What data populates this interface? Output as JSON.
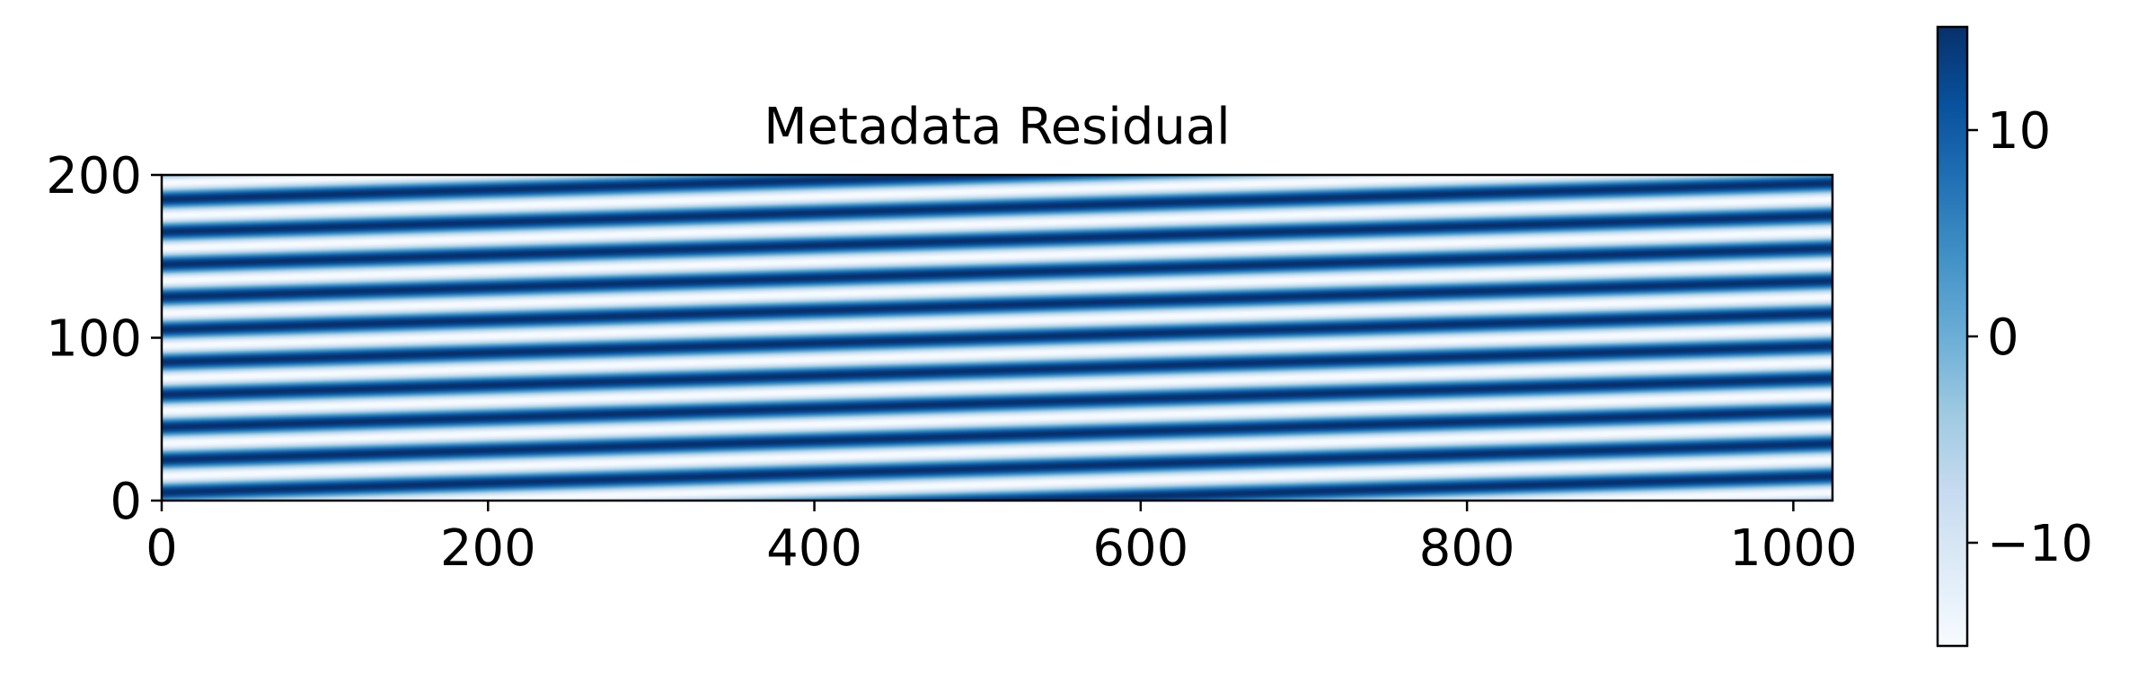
{
  "chart_data": {
    "type": "heatmap",
    "title": "Metadata Residual",
    "xlabel": "",
    "ylabel": "",
    "xlim": [
      0,
      1024
    ],
    "ylim": [
      0,
      200
    ],
    "xticks": [
      0,
      200,
      400,
      600,
      800,
      1000
    ],
    "xtick_labels": [
      "0",
      "200",
      "400",
      "600",
      "800",
      "1000"
    ],
    "yticks": [
      0,
      100,
      200
    ],
    "ytick_labels": [
      "0",
      "100",
      "200"
    ],
    "colormap": "Blues",
    "colormap_stops": [
      "#f7fbff",
      "#deebf7",
      "#c6dbef",
      "#9ecae1",
      "#6baed6",
      "#4292c6",
      "#2171b5",
      "#08519c",
      "#08306b"
    ],
    "colorbar": {
      "range": [
        -15,
        15
      ],
      "ticks": [
        -10,
        0,
        10
      ],
      "tick_labels": [
        "−10",
        "0",
        "10"
      ]
    },
    "pattern": {
      "description": "diagonal sinusoidal stripes",
      "amplitude": 15,
      "stripes_along_y": 10,
      "rise_across_x": 30
    },
    "grid": false
  }
}
